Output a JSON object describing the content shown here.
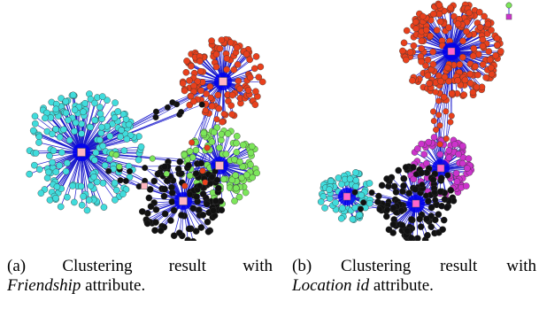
{
  "figure": {
    "panels": [
      {
        "id": "a",
        "caption": {
          "words": [
            "(a)",
            "Clustering",
            "result",
            "with"
          ],
          "attr": "Friendship",
          "tail": " attribute."
        },
        "colors": {
          "edge": "#1a1acc",
          "hub": "#ffb6c1",
          "center": "#0000ee",
          "cluster_colors": [
            "#40dcdc",
            "#e8401c",
            "#7ce65a",
            "#111111"
          ]
        }
      },
      {
        "id": "b",
        "caption": {
          "words": [
            "(b)",
            "Clustering",
            "result",
            "with"
          ],
          "attr": "Location_id",
          "attr_display": "Location id",
          "tail": " attribute."
        },
        "colors": {
          "edge": "#1a1acc",
          "hub": "#ff66cc",
          "center": "#0000ee",
          "cluster_colors": [
            "#e8401c",
            "#cc33cc",
            "#111111",
            "#40dcdc"
          ]
        },
        "legend_colors": [
          "#7ce65a",
          "#cc33cc"
        ]
      }
    ]
  }
}
